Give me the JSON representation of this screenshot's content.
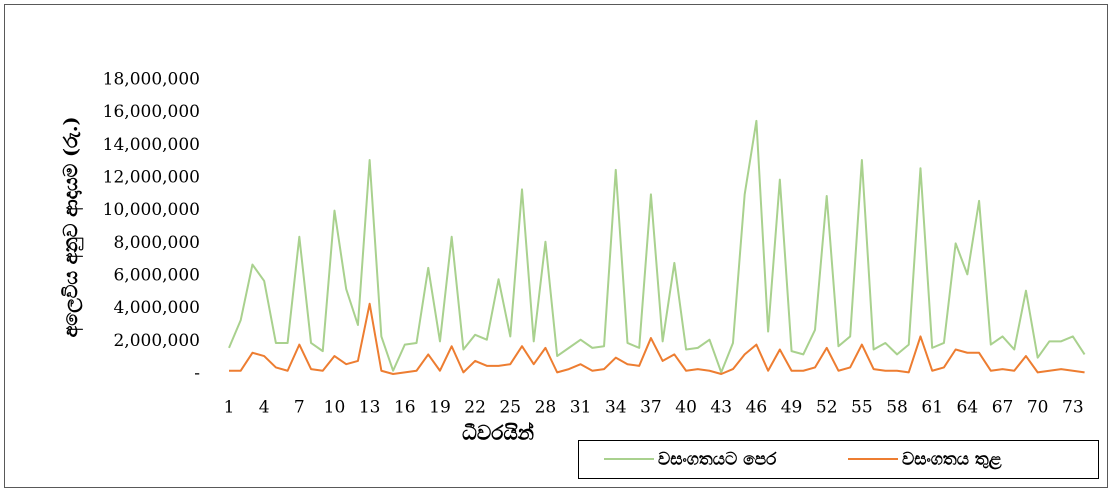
{
  "chart_data": {
    "type": "line",
    "x_label": "ධීවරයින්",
    "y_label": "අලෙවිය අනුව ආදායම (රු.)",
    "categories": [
      "1",
      null,
      null,
      "4",
      null,
      null,
      "7",
      null,
      null,
      "10",
      null,
      null,
      "13",
      null,
      null,
      "16",
      null,
      null,
      "19",
      null,
      null,
      "22",
      null,
      null,
      "25",
      null,
      null,
      "28",
      null,
      null,
      "31",
      null,
      null,
      "34",
      null,
      null,
      "37",
      null,
      null,
      "40",
      null,
      null,
      "43",
      null,
      null,
      "46",
      null,
      null,
      "49",
      null,
      null,
      "52",
      null,
      null,
      "55",
      null,
      null,
      "58",
      null,
      null,
      "61",
      null,
      null,
      "64",
      null,
      null,
      "67",
      null,
      null,
      "70",
      null,
      null,
      "73",
      null
    ],
    "series": [
      {
        "name": "වසංගතයට පෙර",
        "color": "#a9d18e",
        "values": [
          1600000,
          3300000,
          6700000,
          5700000,
          1900000,
          1900000,
          8400000,
          1900000,
          1400000,
          10000000,
          5200000,
          3000000,
          13100000,
          2300000,
          200000,
          1800000,
          1900000,
          6500000,
          2000000,
          8400000,
          1500000,
          2400000,
          2100000,
          5800000,
          2300000,
          11300000,
          2000000,
          8100000,
          1100000,
          1600000,
          2100000,
          1600000,
          1700000,
          12500000,
          1900000,
          1600000,
          11000000,
          2000000,
          6800000,
          1500000,
          1600000,
          2100000,
          100000,
          1900000,
          11000000,
          15500000,
          2600000,
          11900000,
          1400000,
          1200000,
          2700000,
          10900000,
          1700000,
          2300000,
          13100000,
          1500000,
          1900000,
          1200000,
          1800000,
          12600000,
          1600000,
          1900000,
          8000000,
          6100000,
          10600000,
          1800000,
          2300000,
          1500000,
          5100000,
          1000000,
          2000000,
          2000000,
          2300000,
          1200000
        ]
      },
      {
        "name": "වසංගතය තුළ",
        "color": "#ed7d31",
        "values": [
          200000,
          200000,
          1300000,
          1100000,
          400000,
          200000,
          1800000,
          300000,
          200000,
          1100000,
          600000,
          800000,
          4300000,
          200000,
          0,
          100000,
          200000,
          1200000,
          200000,
          1700000,
          100000,
          800000,
          500000,
          500000,
          600000,
          1700000,
          600000,
          1600000,
          100000,
          300000,
          600000,
          200000,
          300000,
          1000000,
          600000,
          500000,
          2200000,
          800000,
          1200000,
          200000,
          300000,
          200000,
          0,
          300000,
          1200000,
          1800000,
          200000,
          1500000,
          200000,
          200000,
          400000,
          1600000,
          200000,
          400000,
          1800000,
          300000,
          200000,
          200000,
          100000,
          2300000,
          200000,
          400000,
          1500000,
          1300000,
          1300000,
          200000,
          300000,
          200000,
          1100000,
          100000,
          200000,
          300000,
          200000,
          100000
        ]
      }
    ],
    "ylim": [
      0,
      18000000
    ],
    "yticks": [
      {
        "value": 0,
        "label": "-"
      },
      {
        "value": 2000000,
        "label": "2,000,000"
      },
      {
        "value": 4000000,
        "label": "4,000,000"
      },
      {
        "value": 6000000,
        "label": "6,000,000"
      },
      {
        "value": 8000000,
        "label": "8,000,000"
      },
      {
        "value": 10000000,
        "label": "10,000,000"
      },
      {
        "value": 12000000,
        "label": "12,000,000"
      },
      {
        "value": 14000000,
        "label": "14,000,000"
      },
      {
        "value": 16000000,
        "label": "16,000,000"
      },
      {
        "value": 18000000,
        "label": "18,000,000"
      }
    ],
    "legend": "bottom-right"
  }
}
